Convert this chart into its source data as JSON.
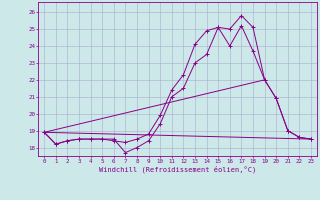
{
  "xlabel": "Windchill (Refroidissement éolien,°C)",
  "background_color": "#cce8e8",
  "grid_color": "#aaaacc",
  "line_color": "#880088",
  "xlim": [
    -0.5,
    23.5
  ],
  "ylim": [
    17.5,
    26.6
  ],
  "xticks": [
    0,
    1,
    2,
    3,
    4,
    5,
    6,
    7,
    8,
    9,
    10,
    11,
    12,
    13,
    14,
    15,
    16,
    17,
    18,
    19,
    20,
    21,
    22,
    23
  ],
  "yticks": [
    18,
    19,
    20,
    21,
    22,
    23,
    24,
    25,
    26
  ],
  "line1_x": [
    0,
    1,
    2,
    3,
    4,
    5,
    6,
    7,
    8,
    9,
    10,
    11,
    12,
    13,
    14,
    15,
    16,
    17,
    18,
    19,
    20,
    21,
    22,
    23
  ],
  "line1_y": [
    18.9,
    18.2,
    18.4,
    18.5,
    18.5,
    18.5,
    18.5,
    17.7,
    18.0,
    18.4,
    19.4,
    21.0,
    21.5,
    23.0,
    23.5,
    25.1,
    25.0,
    25.8,
    25.1,
    22.0,
    20.9,
    19.0,
    18.6,
    18.5
  ],
  "line2_x": [
    0,
    23
  ],
  "line2_y": [
    18.9,
    18.5
  ],
  "line3_x": [
    0,
    1,
    2,
    3,
    4,
    5,
    6,
    7,
    8,
    9,
    10,
    11,
    12,
    13,
    14,
    15,
    16,
    17,
    18,
    19,
    20,
    21,
    22,
    23
  ],
  "line3_y": [
    18.9,
    18.2,
    18.4,
    18.5,
    18.5,
    18.5,
    18.4,
    18.3,
    18.5,
    18.8,
    19.9,
    21.4,
    22.3,
    24.1,
    24.9,
    25.1,
    24.0,
    25.2,
    23.7,
    22.0,
    20.9,
    19.0,
    18.6,
    18.5
  ],
  "line4_x": [
    0,
    19
  ],
  "line4_y": [
    18.9,
    22.0
  ]
}
